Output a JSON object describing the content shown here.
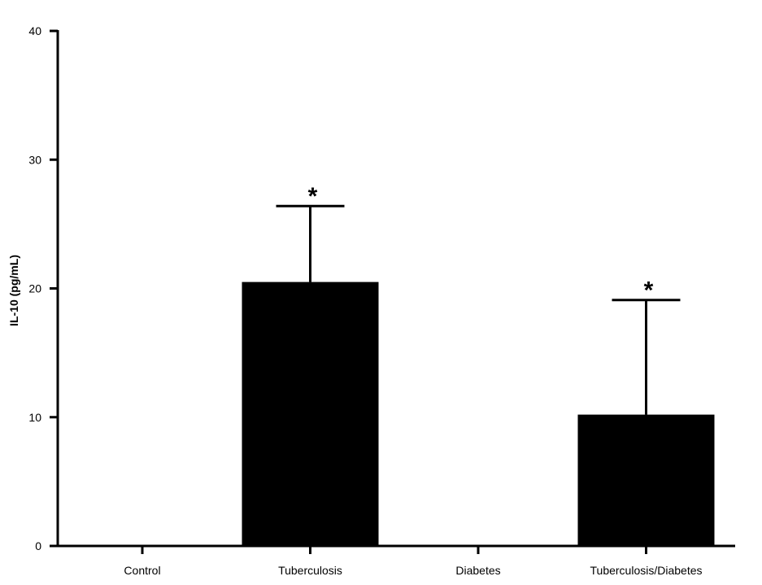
{
  "chart_data": {
    "type": "bar",
    "title": "",
    "xlabel": "",
    "ylabel": "IL-10 (pg/mL)",
    "ylim": [
      0,
      40
    ],
    "yticks": [
      "0",
      "10",
      "20",
      "30",
      "40"
    ],
    "grid": false,
    "legend": "none",
    "categories": [
      "Control",
      "Tuberculosis",
      "Diabetes",
      "Tuberculosis/Diabetes"
    ],
    "values": [
      0,
      20.5,
      0,
      10.2
    ],
    "error_upper": [
      0,
      26.4,
      0,
      19.1
    ],
    "significance": [
      "",
      "*",
      "",
      "*"
    ],
    "bar_color": "#000000",
    "axis_color": "#000000"
  }
}
